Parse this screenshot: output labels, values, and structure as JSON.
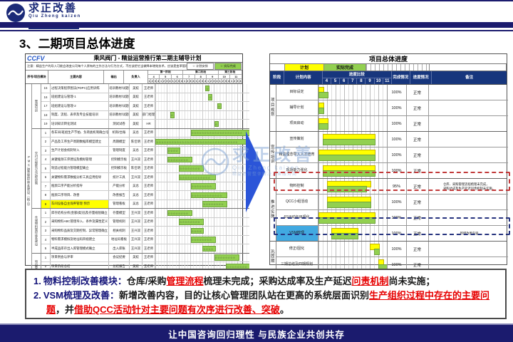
{
  "header": {
    "logo": {
      "brand": "求正改善",
      "brand_en": "Qiu Zheng kaizen",
      "tagline": "精益运营整体解决方案服务商"
    },
    "title": "3、二期项目总体进度"
  },
  "left_table": {
    "org": "CCFV",
    "title": "乘风阀门 - 精益运营推行第二期主辅导计划",
    "note": "注意：精益生产的导入可能会改变公司每个人原有的工作方法与行为方式，不应该把它当做降本增效技术，应该是变革管理。",
    "legend": [
      {
        "symbol": "☆",
        "label": "计划安排",
        "color": "#ffffff"
      },
      {
        "symbol": "☆",
        "label": "实际完成",
        "color": "#92d050"
      }
    ],
    "columns": [
      "序号",
      "项目模块",
      "主要内容",
      "输出",
      "负责人"
    ],
    "stages": [
      {
        "label": "第一阶段",
        "months": [
          "4",
          "5",
          "6"
        ]
      },
      {
        "label": "第二阶段",
        "months": [
          "7",
          "8",
          "9"
        ]
      },
      {
        "label": "第三阶段",
        "months": [
          "10",
          "11"
        ]
      }
    ],
    "weeks": [
      "1",
      "2",
      "3",
      "4"
    ],
    "side_label": "PMC运营管控体系建设（核心）",
    "groups": [
      {
        "module": "管理培训",
        "rows": [
          {
            "no": "15",
            "content": "过程决策程序图法(PDPC)应用训练",
            "output": "培训教材/试题",
            "owner1": "美姣",
            "owner2": "王老师",
            "bar": [
              18,
              18
            ]
          },
          {
            "no": "16",
            "content": "班组建设与管理-1",
            "output": "培训教材/试题",
            "owner1": "美姣",
            "owner2": "王老师",
            "bar": [
              19,
              19
            ]
          },
          {
            "no": "17",
            "content": "班组建设与管理-2",
            "output": "培训教材/试题",
            "owner1": "美姣",
            "owner2": "王老师",
            "bar": [
              22,
              22
            ]
          },
          {
            "no": "18",
            "content": "制度、流程、表单及专业技能培训",
            "output": "培训教材/试题",
            "owner1": "美姣",
            "owner2": "部门经理",
            "bar": [
              6,
              6
            ]
          },
          {
            "no": "19",
            "content": "培训知识转化测试",
            "output": "测试试卷",
            "owner1": "美姣",
            "owner2": "HR",
            "bar": [
              21,
              21
            ]
          }
        ]
      },
      {
        "module": "交付过程能力及过程控制",
        "rows": [
          {
            "no": "1",
            "content": "各车间/班组生产节拍、负荷类机制确立/强化",
            "output": "机制/台账",
            "owner1": "吴总",
            "owner2": "王老师",
            "bar": [
              13,
              32
            ]
          },
          {
            "no": "2",
            "content": "产品及工序生产周期数据库模型建立",
            "output": "周期模型",
            "owner1": "陈佳明",
            "owner2": "王老师",
            "bar": [
              1,
              32
            ]
          },
          {
            "no": "3",
            "content": "生产计划会机制导入",
            "output": "管理制度",
            "owner1": "吴总",
            "owner2": "王老师",
            "bar": [
              5,
              8
            ]
          },
          {
            "no": "4",
            "content": "关键瓶颈工序建设及模拟管理",
            "output": "控制模示板",
            "owner1": "王兴双",
            "owner2": "王老师",
            "bar": [
              5,
              12
            ]
          },
          {
            "no": "5",
            "content": "制造过程能力管理模型确立",
            "output": "控制模示板",
            "owner1": "陈佳明",
            "owner2": "王老师",
            "bar": [
              9,
              16
            ]
          },
          {
            "no": "6",
            "content": "关键物料需求数据分析工具应用指导",
            "output": "统计工具",
            "owner1": "王兴双",
            "owner2": "王老师",
            "bar": [
              9,
              20
            ]
          },
          {
            "no": "7",
            "content": "瓶颈工序产能分析指导",
            "output": "产能分析",
            "owner1": "吴总",
            "owner2": "王老师",
            "bar": [
              13,
              20
            ]
          },
          {
            "no": "8",
            "content": "瓶颈工序项目、改善",
            "output": "改善报告",
            "owner1": "吴总",
            "owner2": "王老师",
            "bar": [
              13,
              24
            ]
          },
          {
            "no": "9",
            "content": "车间设备自主保养管理·预示",
            "output": "管理看板",
            "owner1": "吴总",
            "owner2": "王老师",
            "bar": [
              17,
              24
            ],
            "highlight": "yellow"
          }
        ]
      },
      {
        "module": "仓储物料管控体系建设",
        "rows": [
          {
            "no": "1",
            "content": "库存结构分析(金额/类别)及存量规划确立",
            "output": "存量模型",
            "owner1": "王兴双",
            "owner2": "王老师",
            "bar": [
              5,
              12
            ]
          },
          {
            "no": "2",
            "content": "采购物料ABC管理导入、条件及属性定义",
            "output": "管理机制",
            "owner1": "王兴双",
            "owner2": "王老师",
            "bar": [
              9,
              16
            ]
          },
          {
            "no": "3",
            "content": "采购物料品质及交期控制、异常管理确立",
            "output": "相关机制",
            "owner1": "王兴双",
            "owner2": "王老师",
            "bar": [
              13,
              16
            ]
          },
          {
            "no": "4",
            "content": "物料需求模拟及地址码目视建立",
            "output": "地址码看板",
            "owner1": "王兴双",
            "owner2": "王老师",
            "bar": [
              13,
              20
            ]
          },
          {
            "no": "5",
            "content": "半成品库存出入库管理模式确立",
            "output": "出入库账",
            "owner1": "王兴双",
            "owner2": "王老师",
            "bar": [
              17,
              20
            ]
          }
        ]
      },
      {
        "module": "项目管理",
        "rows": [
          {
            "no": "1",
            "content": "项目例会与评审",
            "output": "会议纪要",
            "owner1": "美姣",
            "owner2": "王老师",
            "bar": [
              21,
              28
            ]
          },
          {
            "no": "2",
            "content": "项目阶段总结",
            "output": "总结报告",
            "owner1": "美姣",
            "owner2": "王老师",
            "bar": [
              25,
              32
            ]
          },
          {
            "no": "3",
            "content": "项目成果发表",
            "output": "发表资料",
            "owner1": "美姣",
            "owner2": "王老师",
            "bar": [
              29,
              32
            ]
          }
        ]
      }
    ]
  },
  "right_table": {
    "title": "项目总体进度",
    "legend": [
      {
        "label": "计划",
        "color": "#ffff00"
      },
      {
        "label": "实际完成",
        "color": "#92d050"
      }
    ],
    "columns": {
      "stage": "阶段",
      "content": "计划内容",
      "compare": "进度比较",
      "completion": "完成情况",
      "status": "进度情况",
      "remark": "备注"
    },
    "months": [
      "4",
      "5",
      "6",
      "7",
      "8",
      "9",
      "10",
      "11"
    ],
    "groups": [
      {
        "stage": "项目规划",
        "rows": [
          {
            "content": "目标设定",
            "plan": [
              1,
              1
            ],
            "actual": [
              1,
              2
            ],
            "completion": "100%",
            "status": "正常",
            "remark": ""
          },
          {
            "content": "辅导计划",
            "plan": [
              1,
              1
            ],
            "actual": [
              1,
              1
            ],
            "completion": "100%",
            "status": "正常",
            "remark": ""
          },
          {
            "content": "项目启动",
            "plan": [
              1,
              2
            ],
            "actual": [
              1,
              2
            ],
            "completion": "100%",
            "status": "正常",
            "remark": ""
          }
        ]
      },
      {
        "stage": "宣传培训",
        "rows": [
          {
            "content": "宣传策划",
            "plan": [
              2,
              13
            ],
            "actual": [
              2,
              13
            ],
            "completion": "100%",
            "status": "正常",
            "remark": ""
          },
          {
            "content": "精益理念导入人才培育",
            "plan": [
              1,
              13
            ],
            "actual": [
              1,
              13
            ],
            "completion": "100%",
            "status": "正常",
            "remark": ""
          },
          {
            "content": "现场能力强化",
            "plan": [
              2,
              13
            ],
            "actual": [
              2,
              13
            ],
            "completion": "100%",
            "status": "正常",
            "remark": ""
          }
        ]
      },
      {
        "stage": "推进实施",
        "rows": [
          {
            "content": "物料控制",
            "plan": [
              3,
              12
            ],
            "actual": [
              3,
              11
            ],
            "completion": "95%",
            "status": "正常",
            "remark": "仓库、采购管理流程梳理未完成，\n采购达成及生产延迟问责机制未实施。",
            "highlight": "red"
          },
          {
            "content": "QCC小组活动",
            "plan": [
              3,
              12
            ],
            "actual": [
              3,
              12
            ],
            "completion": "100%",
            "status": "正常",
            "remark": ""
          },
          {
            "content": "6S运动与目视化",
            "plan": [
              1,
              13
            ],
            "actual": [
              1,
              13
            ],
            "completion": "100%",
            "status": "正常",
            "remark": ""
          },
          {
            "content": "VSM梳理",
            "plan": [
              4,
              9
            ],
            "actual": [
              4,
              9
            ],
            "completion": "100%",
            "status": "正常",
            "remark": "新增改善内容",
            "highlight": "blue",
            "cell_color": "#41a9e1"
          }
        ]
      },
      {
        "stage": "巩固期",
        "rows": [
          {
            "content": "修正/固化",
            "plan": [
              13,
              14
            ],
            "actual": [
              14,
              14
            ],
            "completion": "100%",
            "status": "正常",
            "remark": ""
          },
          {
            "content": "三期总结及四期规划",
            "plan": [
              15,
              15
            ],
            "actual": [
              15,
              16
            ],
            "completion": "100%",
            "status": "正常",
            "remark": ""
          }
        ]
      }
    ]
  },
  "summary": {
    "items": [
      {
        "num": "1.",
        "label": "物料控制改善模块：",
        "segments": [
          [
            "仓库/采购",
            "d"
          ],
          [
            "管理流程",
            "r"
          ],
          [
            "梳理未完成；采购达成率及生产延迟",
            "d"
          ],
          [
            "问责机制",
            "r"
          ],
          [
            "尚未实施；",
            "d"
          ]
        ]
      },
      {
        "num": "2.",
        "label": "VSM梳理及改善：",
        "segments": [
          [
            "新增改善内容，目的让核心管理团队站在更高的系统层面识别",
            "d"
          ],
          [
            "生产组织过程中存在的主要问题",
            "r"
          ],
          [
            "，并",
            "d"
          ],
          [
            "借助QCC活动针对主要问题有次序进行改善、突破",
            "r"
          ],
          [
            "。",
            "d"
          ]
        ]
      }
    ]
  },
  "footer": {
    "text": "让中国咨询回归理性 与民族企业共创共存"
  }
}
